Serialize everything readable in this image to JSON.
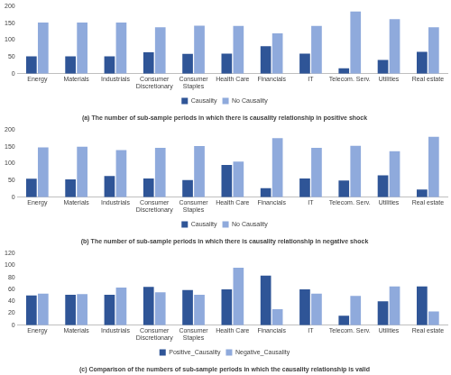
{
  "chart_data": [
    {
      "type": "bar",
      "title": "(a) The number of sub-sample periods in which there is causality relationship in positive shock",
      "categories": [
        "Energy",
        "Materials",
        "Industrials",
        "Consumer Discretionary",
        "Consumer Staples",
        "Health Care",
        "Financials",
        "IT",
        "Telecom. Serv.",
        "Utilities",
        "Real estate"
      ],
      "series": [
        {
          "name": "Causality",
          "color": "#2f5597",
          "values": [
            52,
            52,
            52,
            64,
            59,
            60,
            82,
            60,
            16,
            41,
            65
          ]
        },
        {
          "name": "No Causality",
          "color": "#8faadc",
          "values": [
            152,
            152,
            152,
            138,
            143,
            142,
            120,
            142,
            185,
            162,
            138
          ]
        }
      ],
      "ylim": [
        0,
        200
      ],
      "yticks": [
        0,
        50,
        100,
        150,
        200
      ],
      "grid": false,
      "legend": "bottom"
    },
    {
      "type": "bar",
      "title": "(b) The number of sub-sample periods in which there is causality relationship in negative shock",
      "categories": [
        "Energy",
        "Materials",
        "Industrials",
        "Consumer Discretionary",
        "Consumer Staples",
        "Health Care",
        "Financials",
        "IT",
        "Telecom. Serv.",
        "Utilities",
        "Real estate"
      ],
      "series": [
        {
          "name": "Causality",
          "color": "#2f5597",
          "values": [
            55,
            53,
            63,
            56,
            51,
            96,
            27,
            56,
            50,
            65,
            23
          ]
        },
        {
          "name": "No Causality",
          "color": "#8faadc",
          "values": [
            148,
            150,
            140,
            147,
            152,
            106,
            176,
            147,
            153,
            137,
            180
          ]
        }
      ],
      "ylim": [
        0,
        200
      ],
      "yticks": [
        0,
        50,
        100,
        150,
        200
      ],
      "grid": false,
      "legend": "bottom"
    },
    {
      "type": "bar",
      "title": "(c) Comparison of the numbers of sub-sample periods in which the causality relationship is valid",
      "categories": [
        "Energy",
        "Materials",
        "Industrials",
        "Consumer Discretionary",
        "Consumer Staples",
        "Health Care",
        "Financials",
        "IT",
        "Telecom. Serv.",
        "Utilities",
        "Real estate"
      ],
      "series": [
        {
          "name": "Positive_Causality",
          "color": "#2f5597",
          "values": [
            50,
            51,
            51,
            64,
            59,
            60,
            83,
            60,
            16,
            40,
            65
          ]
        },
        {
          "name": "Negative_Causality",
          "color": "#8faadc",
          "values": [
            53,
            52,
            63,
            55,
            51,
            96,
            27,
            53,
            49,
            65,
            23
          ]
        }
      ],
      "ylim": [
        0,
        120
      ],
      "yticks": [
        0,
        20,
        40,
        60,
        80,
        100,
        120
      ],
      "grid": false,
      "legend": "bottom"
    }
  ]
}
